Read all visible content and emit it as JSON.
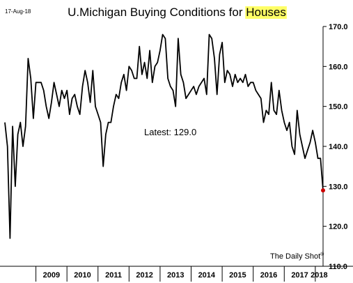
{
  "date_stamp": "17-Aug-18",
  "title_main": "U.Michigan Buying Conditions for ",
  "title_highlight": "Houses",
  "highlight_color": "#ffff66",
  "annotation": "Latest:  129.0",
  "source": "The Daily Shot",
  "source_mark": "®",
  "chart_data": {
    "type": "line",
    "title": "U.Michigan Buying Conditions for Houses",
    "xlabel": "",
    "ylabel": "",
    "ylim": [
      110,
      170
    ],
    "yticks": [
      "110.0",
      "120.0",
      "130.0",
      "140.0",
      "150.0",
      "160.0",
      "170.0"
    ],
    "xcategories": [
      "2009",
      "2010",
      "2011",
      "2012",
      "2013",
      "2014",
      "2015",
      "2016",
      "2017",
      "2018"
    ],
    "grid": false,
    "line_color": "#000000",
    "latest_marker_color": "#cc0000",
    "latest_value": 129.0,
    "series": [
      {
        "x_start": "2008-01",
        "frequency": "monthly",
        "values": [
          146,
          140,
          117,
          145,
          130,
          143,
          146,
          140,
          145,
          162,
          157,
          147,
          156,
          156,
          156,
          154,
          150,
          147,
          151,
          156,
          153,
          150,
          154,
          152,
          154,
          148,
          152,
          153,
          150,
          148,
          155,
          159,
          156,
          151,
          159,
          150,
          148,
          146,
          135,
          143,
          146,
          146,
          150,
          153,
          152,
          156,
          158,
          154,
          160,
          159,
          157,
          157,
          165,
          158,
          161,
          157,
          164,
          156,
          160,
          161,
          164,
          168,
          167,
          157,
          155,
          154,
          150,
          167,
          158,
          156,
          152,
          153,
          154,
          155,
          153,
          155,
          156,
          157,
          153,
          168,
          167,
          162,
          153,
          163,
          166,
          156,
          159,
          158,
          155,
          158,
          156,
          157,
          156,
          158,
          155,
          156,
          156,
          154,
          153,
          152,
          146,
          149,
          148,
          156,
          149,
          148,
          154,
          149,
          146,
          144,
          146,
          140,
          138,
          149,
          143,
          140,
          137,
          139,
          141,
          144,
          141,
          137,
          137,
          129
        ]
      }
    ]
  }
}
